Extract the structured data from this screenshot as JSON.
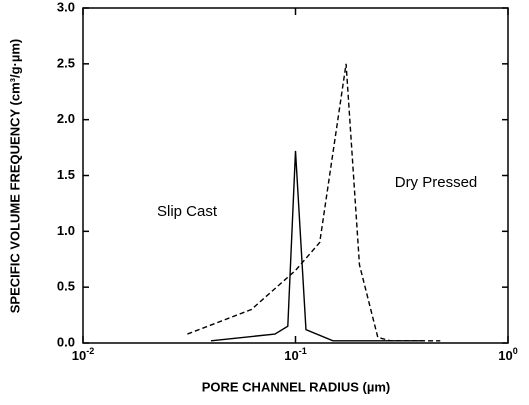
{
  "chart_data": {
    "type": "line",
    "xlabel": "PORE CHANNEL RADIUS (µm)",
    "ylabel": "SPECIFIC VOLUME FREQUENCY (cm³/g·µm)",
    "xscale": "log",
    "xlim": [
      0.01,
      1
    ],
    "xticks": [
      {
        "value": 0.01,
        "label": "10",
        "exponent": "-2"
      },
      {
        "value": 0.1,
        "label": "10",
        "exponent": "-1"
      },
      {
        "value": 1,
        "label": "10",
        "exponent": "0"
      }
    ],
    "ylim": [
      0,
      3
    ],
    "yticks": [
      {
        "value": 0,
        "label": "0.0"
      },
      0.5,
      {
        "value": 1,
        "label": "1.0"
      },
      1.5,
      {
        "value": 2,
        "label": "2.0"
      },
      2.5,
      {
        "value": 3,
        "label": "3.0"
      }
    ],
    "grid": false,
    "annotations": [
      "Slip Cast",
      "Dry Pressed"
    ],
    "series": [
      {
        "name": "Slip Cast",
        "color": "#000000",
        "dash": "solid",
        "x": [
          0.04,
          0.08,
          0.092,
          0.1,
          0.112,
          0.15,
          0.4
        ],
        "values": [
          0.02,
          0.08,
          0.15,
          1.72,
          0.12,
          0.02,
          0.02
        ]
      },
      {
        "name": "Dry Pressed",
        "color": "#000000",
        "dash": "dashed",
        "x": [
          0.031,
          0.062,
          0.1,
          0.13,
          0.173,
          0.2,
          0.244,
          0.28,
          0.48
        ],
        "values": [
          0.08,
          0.3,
          0.65,
          0.9,
          2.5,
          0.7,
          0.05,
          0.02,
          0.02
        ]
      }
    ]
  }
}
